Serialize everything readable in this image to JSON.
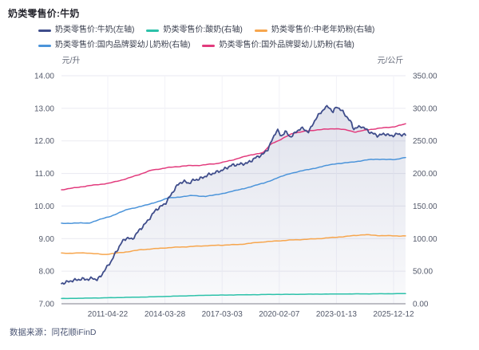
{
  "page": {
    "title": "奶类零售价:牛奶"
  },
  "footer": {
    "text": "数据来源：同花顺iFinD"
  },
  "colors": {
    "title_text": "#26262e",
    "legend_text": "#3c4150",
    "tick_text": "#545a6b",
    "unit_text": "#666b7a",
    "grid_line": "#eaeaf1",
    "vgrid_line": "#f2f2f8",
    "axis_line": "#a8a8b0",
    "source_text": "#4a5473"
  },
  "chart_data": {
    "type": "line",
    "title": "奶类零售价:牛奶",
    "left_axis": {
      "unit": "元/升",
      "min": 7,
      "max": 14,
      "ticks": [
        "14.00",
        "13.00",
        "12.00",
        "11.00",
        "10.00",
        "9.00",
        "8.00",
        "7.00"
      ]
    },
    "right_axis": {
      "unit": "元/公斤",
      "min": 0,
      "max": 350,
      "ticks": [
        "350.00",
        "300.00",
        "250.00",
        "200.00",
        "150.00",
        "100.00",
        "50.00",
        "0.00"
      ]
    },
    "x_axis": {
      "tick_labels": [
        "2011-04-22",
        "2014-03-28",
        "2017-03-03",
        "2020-02-07",
        "2023-01-13",
        "2025-12-12"
      ]
    },
    "legend_rows": [
      [
        0,
        1,
        2
      ],
      [
        3,
        4
      ]
    ],
    "grid": true,
    "legend_position": "top",
    "series": [
      {
        "name": "奶类零售价:牛奶(左轴)",
        "axis": "left",
        "color": "#3f4d8b",
        "area": true,
        "points": [
          [
            0.0,
            7.62
          ],
          [
            0.03,
            7.71
          ],
          [
            0.06,
            7.76
          ],
          [
            0.08,
            7.75
          ],
          [
            0.092,
            7.79
          ],
          [
            0.103,
            7.73
          ],
          [
            0.112,
            7.82
          ],
          [
            0.125,
            8.02
          ],
          [
            0.146,
            8.33
          ],
          [
            0.155,
            8.52
          ],
          [
            0.176,
            8.9
          ],
          [
            0.19,
            9.03
          ],
          [
            0.205,
            8.97
          ],
          [
            0.22,
            9.18
          ],
          [
            0.251,
            9.55
          ],
          [
            0.274,
            9.88
          ],
          [
            0.302,
            10.08
          ],
          [
            0.332,
            10.57
          ],
          [
            0.343,
            10.7
          ],
          [
            0.355,
            10.76
          ],
          [
            0.37,
            10.7
          ],
          [
            0.385,
            10.8
          ],
          [
            0.401,
            10.83
          ],
          [
            0.425,
            10.95
          ],
          [
            0.448,
            11.03
          ],
          [
            0.471,
            11.12
          ],
          [
            0.494,
            11.25
          ],
          [
            0.517,
            11.28
          ],
          [
            0.541,
            11.32
          ],
          [
            0.564,
            11.48
          ],
          [
            0.587,
            11.6
          ],
          [
            0.6,
            11.75
          ],
          [
            0.627,
            12.36
          ],
          [
            0.638,
            12.12
          ],
          [
            0.65,
            12.3
          ],
          [
            0.664,
            12.12
          ],
          [
            0.68,
            12.25
          ],
          [
            0.696,
            12.4
          ],
          [
            0.71,
            12.32
          ],
          [
            0.719,
            12.28
          ],
          [
            0.74,
            12.7
          ],
          [
            0.766,
            13.02
          ],
          [
            0.777,
            13.05
          ],
          [
            0.789,
            12.88
          ],
          [
            0.8,
            13.06
          ],
          [
            0.819,
            12.88
          ],
          [
            0.842,
            12.56
          ],
          [
            0.849,
            12.37
          ],
          [
            0.872,
            12.45
          ],
          [
            0.896,
            12.27
          ],
          [
            0.919,
            12.16
          ],
          [
            0.94,
            12.22
          ],
          [
            0.958,
            12.15
          ],
          [
            0.975,
            12.21
          ],
          [
            1.0,
            12.18
          ]
        ]
      },
      {
        "name": "奶类零售价:酸奶(右轴)",
        "axis": "right",
        "color": "#2cc1a9",
        "area": false,
        "points": [
          [
            0.0,
            8.0
          ],
          [
            0.1,
            8.8
          ],
          [
            0.25,
            10.5
          ],
          [
            0.42,
            13.0
          ],
          [
            0.6,
            14.2
          ],
          [
            0.8,
            15.0
          ],
          [
            1.0,
            15.5
          ]
        ]
      },
      {
        "name": "奶类零售价:中老年奶粉(右轴)",
        "axis": "right",
        "color": "#f7a64e",
        "area": false,
        "points": [
          [
            0.0,
            77.5
          ],
          [
            0.077,
            78.0
          ],
          [
            0.123,
            75.5
          ],
          [
            0.181,
            79.0
          ],
          [
            0.232,
            83.0
          ],
          [
            0.309,
            86.0
          ],
          [
            0.418,
            89.0
          ],
          [
            0.517,
            91.0
          ],
          [
            0.587,
            95.0
          ],
          [
            0.657,
            97.5
          ],
          [
            0.749,
            100.0
          ],
          [
            0.819,
            103.0
          ],
          [
            0.877,
            106.0
          ],
          [
            0.935,
            104.5
          ],
          [
            1.0,
            104.0
          ]
        ]
      },
      {
        "name": "奶类零售价:国内品牌婴幼儿奶粉(右轴)",
        "axis": "right",
        "color": "#4b94da",
        "area": false,
        "points": [
          [
            0.0,
            123.5
          ],
          [
            0.08,
            124.0
          ],
          [
            0.146,
            135.0
          ],
          [
            0.193,
            145.0
          ],
          [
            0.251,
            152.0
          ],
          [
            0.309,
            162.0
          ],
          [
            0.378,
            166.0
          ],
          [
            0.418,
            165.0
          ],
          [
            0.448,
            167.0
          ],
          [
            0.517,
            175.0
          ],
          [
            0.587,
            185.0
          ],
          [
            0.627,
            193.0
          ],
          [
            0.664,
            200.0
          ],
          [
            0.726,
            207.0
          ],
          [
            0.796,
            215.0
          ],
          [
            0.842,
            217.0
          ],
          [
            0.888,
            221.0
          ],
          [
            0.935,
            222.0
          ],
          [
            0.97,
            221.0
          ],
          [
            1.0,
            225.0
          ]
        ]
      },
      {
        "name": "奶类零售价:国外品牌婴幼儿奶粉(右轴)",
        "axis": "right",
        "color": "#e23b7d",
        "area": false,
        "points": [
          [
            0.0,
            175.0
          ],
          [
            0.077,
            181.0
          ],
          [
            0.139,
            185.0
          ],
          [
            0.193,
            192.5
          ],
          [
            0.262,
            205.0
          ],
          [
            0.309,
            209.0
          ],
          [
            0.355,
            211.5
          ],
          [
            0.401,
            212.5
          ],
          [
            0.448,
            215.0
          ],
          [
            0.494,
            220.0
          ],
          [
            0.517,
            224.0
          ],
          [
            0.541,
            227.0
          ],
          [
            0.564,
            230.0
          ],
          [
            0.587,
            232.0
          ],
          [
            0.61,
            246.0
          ],
          [
            0.633,
            251.0
          ],
          [
            0.673,
            262.0
          ],
          [
            0.733,
            266.5
          ],
          [
            0.796,
            269.0
          ],
          [
            0.831,
            266.5
          ],
          [
            0.854,
            263.5
          ],
          [
            0.888,
            267.0
          ],
          [
            0.935,
            270.0
          ],
          [
            0.97,
            272.0
          ],
          [
            1.0,
            276.0
          ]
        ]
      }
    ]
  }
}
